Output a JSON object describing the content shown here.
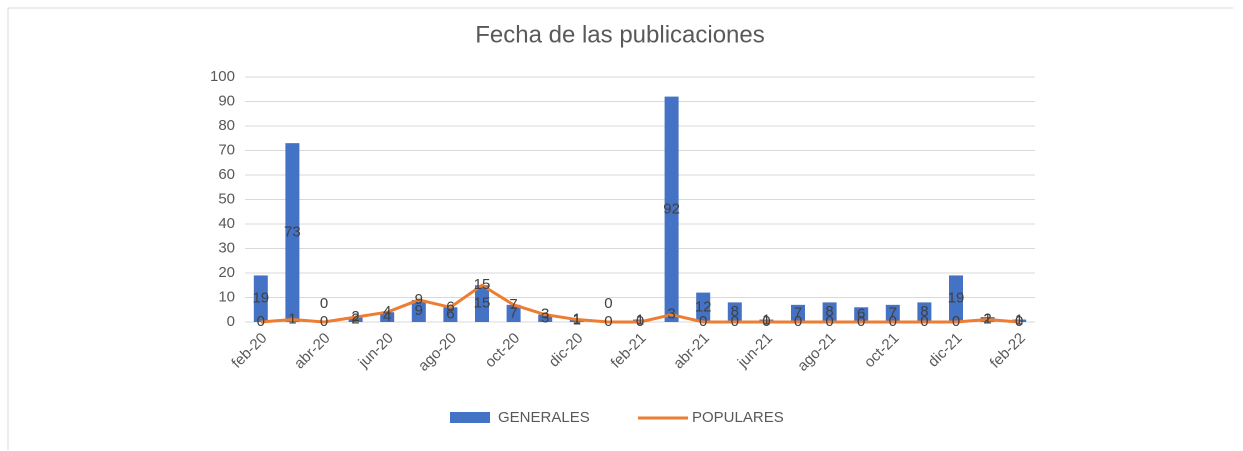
{
  "chart_data": {
    "type": "bar_line",
    "title": "Fecha de las publicaciones",
    "categories": [
      "feb-20",
      null,
      "abr-20",
      null,
      "jun-20",
      null,
      "ago-20",
      null,
      "oct-20",
      null,
      "dic-20",
      null,
      "feb-21",
      null,
      "abr-21",
      null,
      "jun-21",
      null,
      "ago-21",
      null,
      "oct-21",
      null,
      "dic-21",
      null,
      "feb-22"
    ],
    "series": [
      {
        "name": "GENERALES",
        "type": "bar",
        "color": "#4472c4",
        "values": [
          19,
          73,
          0,
          2,
          4,
          9,
          6,
          15,
          7,
          3,
          1,
          0,
          1,
          92,
          12,
          8,
          1,
          7,
          8,
          6,
          7,
          8,
          19,
          2,
          1
        ]
      },
      {
        "name": "POPULARES",
        "type": "line",
        "color": "#ed7d31",
        "values": [
          0,
          1,
          0,
          2,
          4,
          9,
          6,
          15,
          7,
          3,
          1,
          0,
          0,
          3,
          0,
          0,
          0,
          0,
          0,
          0,
          0,
          0,
          0,
          1,
          0
        ]
      }
    ],
    "ylim": [
      0,
      100
    ],
    "yticks": [
      0,
      10,
      20,
      30,
      40,
      50,
      60,
      70,
      80,
      90,
      100
    ],
    "grid": true,
    "legend": "bottom"
  }
}
